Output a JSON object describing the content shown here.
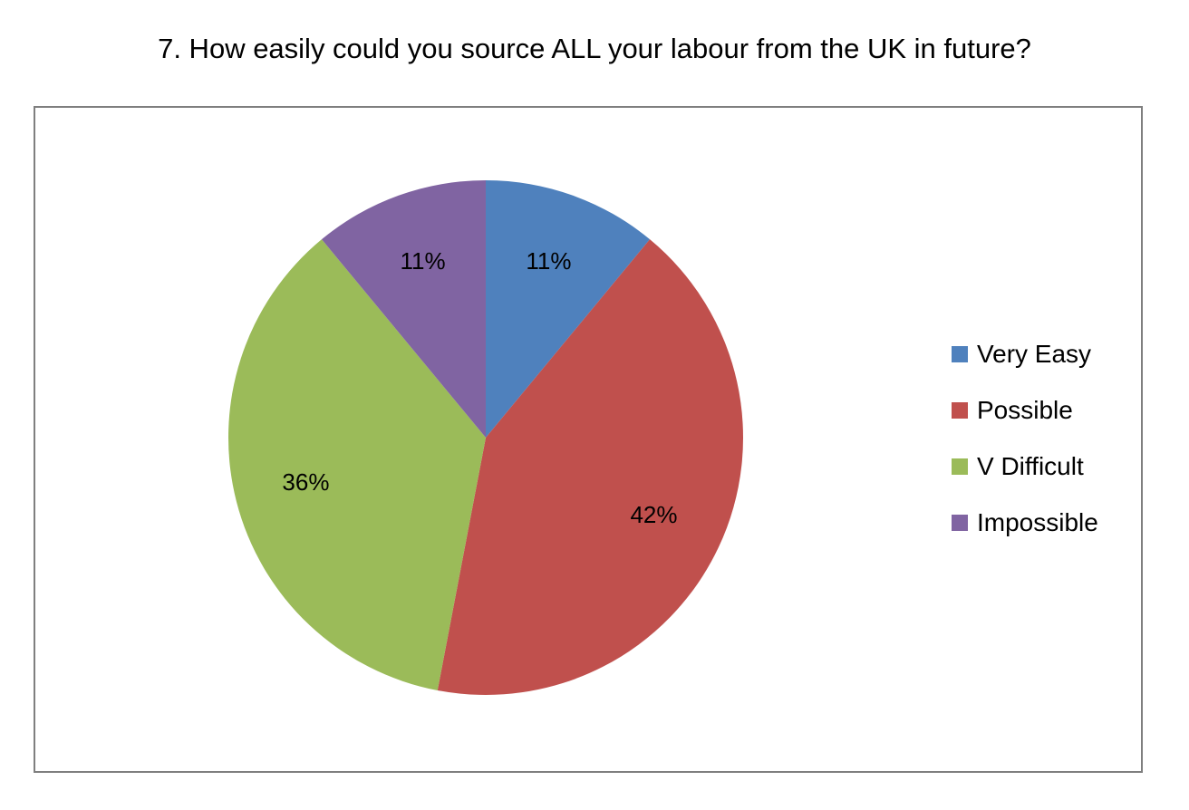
{
  "chart_data": {
    "type": "pie",
    "title": "7. How easily could you source ALL your labour from the UK in future?",
    "categories": [
      "Very Easy",
      "Possible",
      "V Difficult",
      "Impossible"
    ],
    "values": [
      11,
      42,
      36,
      11
    ],
    "labels": [
      "11%",
      "42%",
      "36%",
      "11%"
    ],
    "colors": [
      "#4f81bd",
      "#c0504d",
      "#9bbb59",
      "#8064a2"
    ],
    "legend_position": "right"
  }
}
